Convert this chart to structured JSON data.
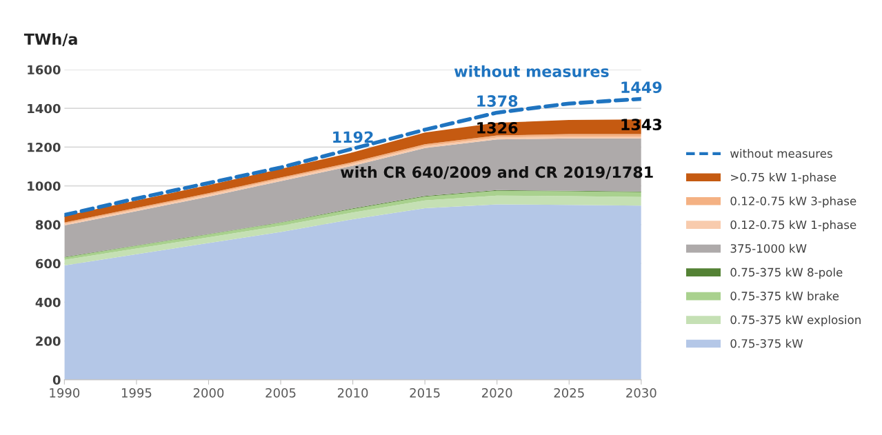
{
  "chart_data": {
    "type": "area",
    "stacked": true,
    "ylabel": "TWh/a",
    "x": [
      1990,
      1995,
      2000,
      2005,
      2010,
      2015,
      2020,
      2025,
      2030
    ],
    "xlim": [
      1990,
      2030
    ],
    "xticks": [
      1990,
      1995,
      2000,
      2005,
      2010,
      2015,
      2020,
      2025,
      2030
    ],
    "ylim": [
      0,
      1600
    ],
    "yticks": [
      0,
      200,
      400,
      600,
      800,
      1000,
      1200,
      1400,
      1600
    ],
    "grid": "y",
    "legend": "right",
    "series": [
      {
        "name": "0.75-375 kW",
        "color": "#b4c7e7",
        "values": [
          590,
          648,
          705,
          762,
          828,
          885,
          905,
          902,
          898
        ]
      },
      {
        "name": "0.75-375 kW explosion",
        "color": "#c5e0b4",
        "values": [
          28,
          29,
          30,
          32,
          35,
          40,
          45,
          45,
          45
        ]
      },
      {
        "name": "0.75-375 kW brake",
        "color": "#a9d18e",
        "values": [
          13,
          14,
          15,
          16,
          18,
          20,
          25,
          25,
          25
        ]
      },
      {
        "name": "0.75-375 kW 8-pole",
        "color": "#548235",
        "values": [
          2,
          2,
          2,
          2,
          3,
          3,
          3,
          3,
          3
        ]
      },
      {
        "name": "375-1000 kW",
        "color": "#aeaaaa",
        "values": [
          163,
          177,
          193,
          213,
          220,
          247,
          262,
          270,
          274
        ]
      },
      {
        "name": "0.12-0.75 kW 1-phase",
        "color": "#f8cbad",
        "values": [
          8,
          9,
          9,
          10,
          10,
          10,
          10,
          10,
          10
        ]
      },
      {
        "name": "0.12-0.75 kW 3-phase",
        "color": "#f4b183",
        "values": [
          7,
          8,
          8,
          8,
          9,
          10,
          10,
          12,
          12
        ]
      },
      {
        "name": ">0.75 kW 1-phase",
        "color": "#c55a11",
        "values": [
          34,
          38,
          42,
          45,
          50,
          60,
          66,
          73,
          76
        ]
      },
      {
        "name": "without measures",
        "type": "line",
        "line_style": "dashed",
        "color": "#1f74c0",
        "values": [
          850,
          935,
          1015,
          1095,
          1192,
          1290,
          1378,
          1425,
          1449
        ]
      }
    ],
    "annotations": [
      "without measures",
      "with CR 640/2009 and CR 2019/1781",
      {
        "text": "1192",
        "x": 2010,
        "y": 1192
      },
      {
        "text": "1378",
        "x": 2020,
        "y": 1378
      },
      {
        "text": "1449",
        "x": 2030,
        "y": 1449
      },
      {
        "text": "1326",
        "x": 2020,
        "y": 1326
      },
      {
        "text": "1343",
        "x": 2030,
        "y": 1343
      }
    ]
  }
}
